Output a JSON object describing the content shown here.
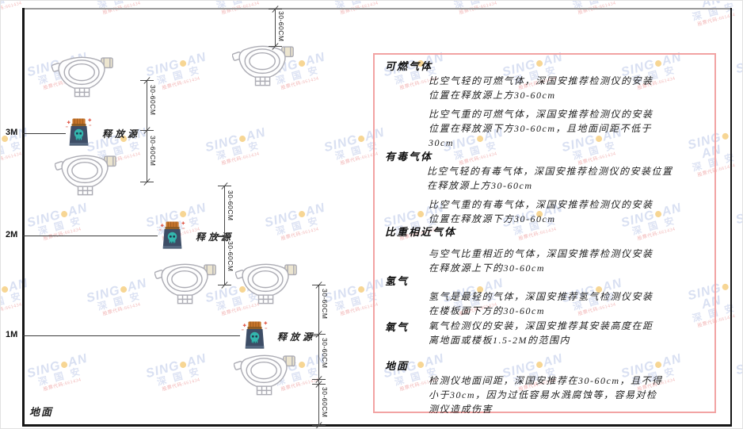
{
  "watermark": {
    "brand": "SING",
    "brand2": "AN",
    "cn": "深 国 安",
    "code": "股票代码:661434"
  },
  "diagram": {
    "ground_label": "地面",
    "release_source_label": "释放源",
    "dim_label": "30-60CM",
    "axis_labels": [
      "3M",
      "2M",
      "1M"
    ]
  },
  "panel": {
    "sections": [
      {
        "heading": "可燃气体",
        "paragraphs": [
          [
            "比空气轻的可燃气体，深国安推荐检测仪的安装",
            "位置在释放源上方30-60cm"
          ],
          [
            "比空气重的可燃气体，深国安推荐检测仪的安装",
            "位置在释放源下方30-60cm，且地面间距不低于",
            "30cm"
          ]
        ]
      },
      {
        "heading": "有毒气体",
        "paragraphs": [
          [
            "比空气轻的有毒气体，深国安推荐检测仪的安装位置",
            "在释放源上方30-60cm"
          ],
          [
            "比空气重的有毒气体，深国安推荐检测仪的安装",
            "位置在释放源下方30-60cm"
          ]
        ]
      },
      {
        "heading": "比重相近气体",
        "paragraphs": [
          [
            "与空气比重相近的气体，深国安推荐检测仪安装",
            "在释放源上下的30-60cm"
          ]
        ]
      },
      {
        "heading": "氢气",
        "paragraphs": [
          [
            "氢气是最轻的气体，深国安推荐氢气检测仪安装",
            "在楼板面下方的30-60cm"
          ]
        ]
      },
      {
        "heading": "氧气",
        "paragraphs": [
          [
            "氧气检测仪的安装，深国安推荐其安装高度在距",
            "离地面或楼板1.5-2M的范围内"
          ]
        ]
      },
      {
        "heading": "地面",
        "paragraphs": [
          [
            "检测仪地面间距，深国安推荐在30-60cm，且不得",
            "小于30cm，因为过低容易水溅腐蚀等，容易对检",
            "测仪造成伤害"
          ]
        ]
      }
    ]
  }
}
